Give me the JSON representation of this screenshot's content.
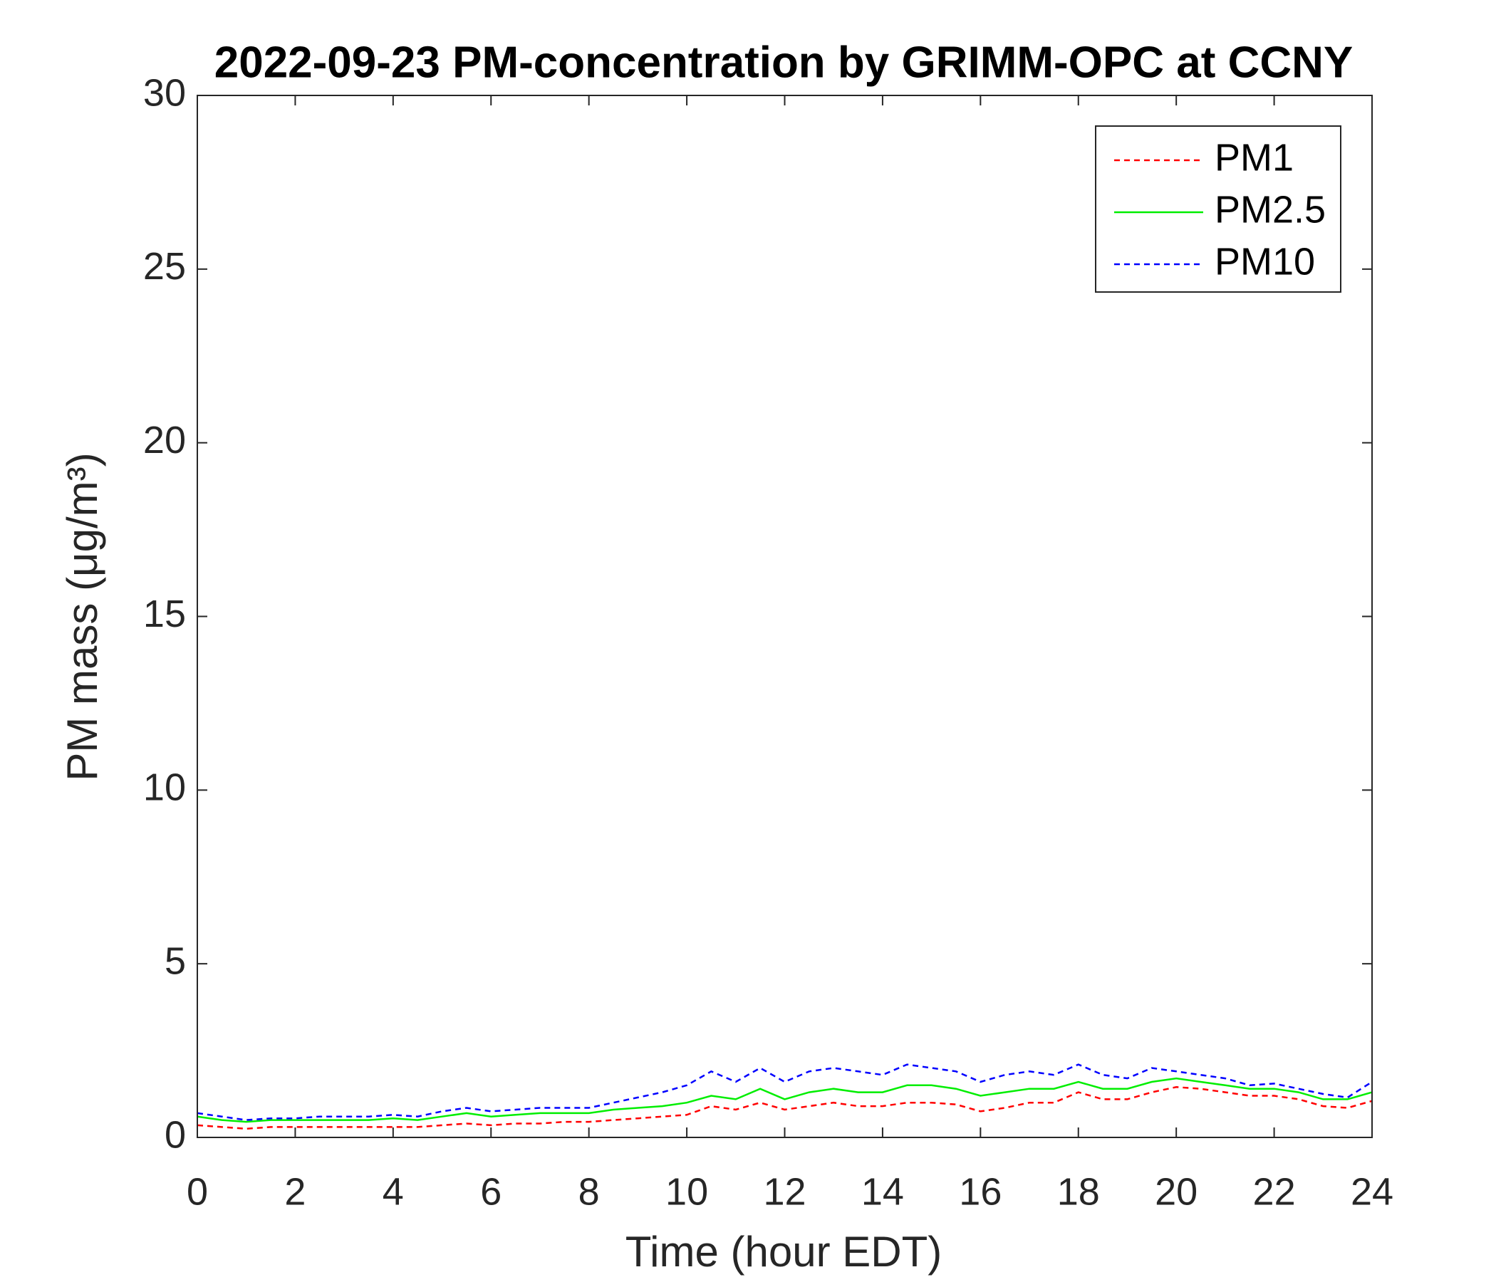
{
  "chart_data": {
    "type": "line",
    "title": "2022-09-23 PM-concentration by GRIMM-OPC at CCNY",
    "x_label": "Time (hour EDT)",
    "y_label": "PM mass (μg/m³)",
    "x": [
      0,
      0.5,
      1,
      1.5,
      2,
      2.5,
      3,
      3.5,
      4,
      4.5,
      5,
      5.5,
      6,
      6.5,
      7,
      7.5,
      8,
      8.5,
      9,
      9.5,
      10,
      10.5,
      11,
      11.5,
      12,
      12.5,
      13,
      13.5,
      14,
      14.5,
      15,
      15.5,
      16,
      16.5,
      17,
      17.5,
      18,
      18.5,
      19,
      19.5,
      20,
      20.5,
      21,
      21.5,
      22,
      22.5,
      23,
      23.5,
      24
    ],
    "series": [
      {
        "name": "PM1",
        "color": "#ff0000",
        "style": "dashed",
        "values": [
          0.35,
          0.3,
          0.25,
          0.3,
          0.3,
          0.3,
          0.3,
          0.3,
          0.3,
          0.3,
          0.35,
          0.4,
          0.35,
          0.4,
          0.4,
          0.45,
          0.45,
          0.5,
          0.55,
          0.6,
          0.65,
          0.9,
          0.8,
          1.0,
          0.8,
          0.9,
          1.0,
          0.9,
          0.9,
          1.0,
          1.0,
          0.95,
          0.75,
          0.85,
          1.0,
          1.0,
          1.3,
          1.1,
          1.1,
          1.3,
          1.45,
          1.4,
          1.3,
          1.2,
          1.2,
          1.1,
          0.9,
          0.85,
          1.05
        ]
      },
      {
        "name": "PM2.5",
        "color": "#00ee00",
        "style": "solid",
        "values": [
          0.6,
          0.5,
          0.45,
          0.5,
          0.5,
          0.5,
          0.5,
          0.5,
          0.55,
          0.5,
          0.6,
          0.7,
          0.6,
          0.65,
          0.7,
          0.7,
          0.7,
          0.8,
          0.85,
          0.9,
          1.0,
          1.2,
          1.1,
          1.4,
          1.1,
          1.3,
          1.4,
          1.3,
          1.3,
          1.5,
          1.5,
          1.4,
          1.2,
          1.3,
          1.4,
          1.4,
          1.6,
          1.4,
          1.4,
          1.6,
          1.7,
          1.6,
          1.5,
          1.4,
          1.4,
          1.3,
          1.1,
          1.1,
          1.3
        ]
      },
      {
        "name": "PM10",
        "color": "#0000ff",
        "style": "dashed",
        "values": [
          0.7,
          0.6,
          0.5,
          0.55,
          0.55,
          0.6,
          0.6,
          0.6,
          0.65,
          0.6,
          0.75,
          0.85,
          0.75,
          0.8,
          0.85,
          0.85,
          0.85,
          1.0,
          1.15,
          1.3,
          1.5,
          1.9,
          1.6,
          2.0,
          1.6,
          1.9,
          2.0,
          1.9,
          1.8,
          2.1,
          2.0,
          1.9,
          1.6,
          1.8,
          1.9,
          1.8,
          2.1,
          1.8,
          1.7,
          2.0,
          1.9,
          1.8,
          1.7,
          1.5,
          1.55,
          1.4,
          1.25,
          1.15,
          1.6
        ]
      }
    ],
    "xlim": [
      0,
      24
    ],
    "xticks": [
      0,
      2,
      4,
      6,
      8,
      10,
      12,
      14,
      16,
      18,
      20,
      22,
      24
    ],
    "ylim": [
      0,
      30
    ],
    "yticks": [
      0,
      5,
      10,
      15,
      20,
      25,
      30
    ],
    "grid": false,
    "legend": "upper right"
  }
}
